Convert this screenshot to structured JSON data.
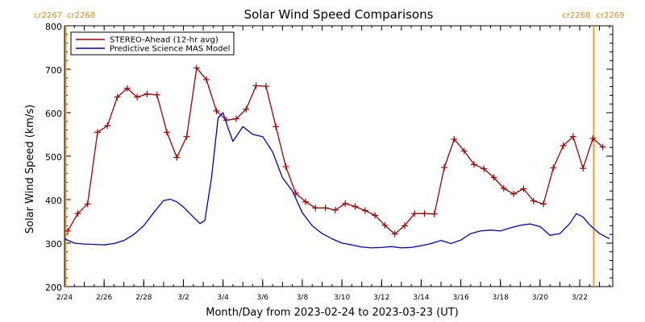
{
  "chart_data": {
    "type": "line",
    "title": "Solar Wind Speed Comparisons",
    "xlabel": "Month/Day from 2023-02-24 to 2023-03-23 (UT)",
    "ylabel": "Solar Wind Speed (km/s)",
    "xlim": [
      "2023-02-24",
      "2023-03-23"
    ],
    "ylim": [
      200,
      800
    ],
    "y_ticks": [
      200,
      300,
      400,
      500,
      600,
      700,
      800
    ],
    "x_ticks": [
      {
        "date": "2023-02-24",
        "label": "2/24"
      },
      {
        "date": "2023-02-26",
        "label": "2/26"
      },
      {
        "date": "2023-02-28",
        "label": "2/28"
      },
      {
        "date": "2023-03-02",
        "label": "3/2"
      },
      {
        "date": "2023-03-04",
        "label": "3/4"
      },
      {
        "date": "2023-03-06",
        "label": "3/6"
      },
      {
        "date": "2023-03-08",
        "label": "3/8"
      },
      {
        "date": "2023-03-10",
        "label": "3/10"
      },
      {
        "date": "2023-03-12",
        "label": "3/12"
      },
      {
        "date": "2023-03-14",
        "label": "3/14"
      },
      {
        "date": "2023-03-16",
        "label": "3/16"
      },
      {
        "date": "2023-03-18",
        "label": "3/18"
      },
      {
        "date": "2023-03-20",
        "label": "3/20"
      },
      {
        "date": "2023-03-22",
        "label": "3/22"
      }
    ],
    "legend_position": "top-left",
    "grid": false,
    "carrington_markers": [
      {
        "date": "2023-02-24",
        "left_label": "cr2267",
        "right_label": "cr2268"
      },
      {
        "date": "2023-03-22 17:00",
        "left_label": "cr2268",
        "right_label": "cr2269"
      }
    ],
    "marker_color": "#f0a030",
    "series": [
      {
        "name": "STEREO-Ahead (12-hr avg)",
        "color": "#a00000",
        "marker": "plus",
        "points": [
          [
            "2023-02-24 04:00",
            328
          ],
          [
            "2023-02-24 16:00",
            368
          ],
          [
            "2023-02-25 04:00",
            390
          ],
          [
            "2023-02-25 16:00",
            555
          ],
          [
            "2023-02-26 04:00",
            570
          ],
          [
            "2023-02-26 16:00",
            636
          ],
          [
            "2023-02-27 04:00",
            656
          ],
          [
            "2023-02-27 16:00",
            636
          ],
          [
            "2023-02-28 04:00",
            643
          ],
          [
            "2023-02-28 16:00",
            641
          ],
          [
            "2023-03-01 04:00",
            555
          ],
          [
            "2023-03-01 16:00",
            497
          ],
          [
            "2023-03-02 04:00",
            545
          ],
          [
            "2023-03-02 16:00",
            703
          ],
          [
            "2023-03-03 04:00",
            676
          ],
          [
            "2023-03-03 16:00",
            604
          ],
          [
            "2023-03-04 04:00",
            583
          ],
          [
            "2023-03-04 16:00",
            586
          ],
          [
            "2023-03-05 04:00",
            608
          ],
          [
            "2023-03-05 16:00",
            662
          ],
          [
            "2023-03-06 04:00",
            661
          ],
          [
            "2023-03-06 16:00",
            568
          ],
          [
            "2023-03-07 04:00",
            476
          ],
          [
            "2023-03-07 16:00",
            415
          ],
          [
            "2023-03-08 04:00",
            395
          ],
          [
            "2023-03-08 16:00",
            381
          ],
          [
            "2023-03-09 04:00",
            381
          ],
          [
            "2023-03-09 16:00",
            376
          ],
          [
            "2023-03-10 04:00",
            391
          ],
          [
            "2023-03-10 16:00",
            384
          ],
          [
            "2023-03-11 04:00",
            375
          ],
          [
            "2023-03-11 16:00",
            364
          ],
          [
            "2023-03-12 04:00",
            341
          ],
          [
            "2023-03-12 16:00",
            321
          ],
          [
            "2023-03-13 04:00",
            340
          ],
          [
            "2023-03-13 16:00",
            368
          ],
          [
            "2023-03-14 04:00",
            368
          ],
          [
            "2023-03-14 16:00",
            367
          ],
          [
            "2023-03-15 04:00",
            474
          ],
          [
            "2023-03-15 16:00",
            539
          ],
          [
            "2023-03-16 04:00",
            512
          ],
          [
            "2023-03-16 16:00",
            481
          ],
          [
            "2023-03-17 04:00",
            471
          ],
          [
            "2023-03-17 16:00",
            451
          ],
          [
            "2023-03-18 04:00",
            426
          ],
          [
            "2023-03-18 16:00",
            413
          ],
          [
            "2023-03-19 04:00",
            425
          ],
          [
            "2023-03-19 16:00",
            397
          ],
          [
            "2023-03-20 04:00",
            390
          ],
          [
            "2023-03-20 16:00",
            473
          ],
          [
            "2023-03-21 04:00",
            524
          ],
          [
            "2023-03-21 16:00",
            545
          ],
          [
            "2023-03-22 04:00",
            472
          ],
          [
            "2023-03-22 16:00",
            541
          ],
          [
            "2023-03-23 04:00",
            521
          ]
        ]
      },
      {
        "name": "Predictive Science MAS Model",
        "color": "#0000c8",
        "marker": "none",
        "points": [
          [
            "2023-02-24 00:00",
            310
          ],
          [
            "2023-02-24 12:00",
            300
          ],
          [
            "2023-02-25 00:00",
            298
          ],
          [
            "2023-02-25 12:00",
            297
          ],
          [
            "2023-02-26 00:00",
            296
          ],
          [
            "2023-02-26 12:00",
            299
          ],
          [
            "2023-02-27 00:00",
            306
          ],
          [
            "2023-02-27 12:00",
            320
          ],
          [
            "2023-02-28 00:00",
            340
          ],
          [
            "2023-02-28 12:00",
            370
          ],
          [
            "2023-03-01 00:00",
            398
          ],
          [
            "2023-03-01 08:00",
            401
          ],
          [
            "2023-03-01 16:00",
            395
          ],
          [
            "2023-03-02 00:00",
            383
          ],
          [
            "2023-03-02 12:00",
            360
          ],
          [
            "2023-03-02 20:00",
            345
          ],
          [
            "2023-03-03 02:00",
            352
          ],
          [
            "2023-03-03 10:00",
            450
          ],
          [
            "2023-03-03 18:00",
            588
          ],
          [
            "2023-03-04 00:00",
            600
          ],
          [
            "2023-03-04 06:00",
            565
          ],
          [
            "2023-03-04 12:00",
            534
          ],
          [
            "2023-03-05 00:00",
            568
          ],
          [
            "2023-03-05 12:00",
            550
          ],
          [
            "2023-03-06 00:00",
            545
          ],
          [
            "2023-03-06 12:00",
            510
          ],
          [
            "2023-03-07 00:00",
            450
          ],
          [
            "2023-03-07 12:00",
            420
          ],
          [
            "2023-03-08 00:00",
            370
          ],
          [
            "2023-03-08 12:00",
            340
          ],
          [
            "2023-03-09 00:00",
            322
          ],
          [
            "2023-03-09 12:00",
            310
          ],
          [
            "2023-03-10 00:00",
            300
          ],
          [
            "2023-03-10 12:00",
            296
          ],
          [
            "2023-03-11 00:00",
            291
          ],
          [
            "2023-03-11 12:00",
            289
          ],
          [
            "2023-03-12 00:00",
            290
          ],
          [
            "2023-03-12 12:00",
            292
          ],
          [
            "2023-03-13 00:00",
            289
          ],
          [
            "2023-03-13 12:00",
            290
          ],
          [
            "2023-03-14 00:00",
            294
          ],
          [
            "2023-03-14 12:00",
            299
          ],
          [
            "2023-03-15 00:00",
            306
          ],
          [
            "2023-03-15 12:00",
            299
          ],
          [
            "2023-03-16 00:00",
            307
          ],
          [
            "2023-03-16 12:00",
            322
          ],
          [
            "2023-03-17 00:00",
            328
          ],
          [
            "2023-03-17 12:00",
            330
          ],
          [
            "2023-03-18 00:00",
            328
          ],
          [
            "2023-03-18 12:00",
            335
          ],
          [
            "2023-03-19 00:00",
            341
          ],
          [
            "2023-03-19 12:00",
            344
          ],
          [
            "2023-03-20 00:00",
            338
          ],
          [
            "2023-03-20 12:00",
            318
          ],
          [
            "2023-03-21 00:00",
            322
          ],
          [
            "2023-03-21 12:00",
            345
          ],
          [
            "2023-03-21 20:00",
            368
          ],
          [
            "2023-03-22 04:00",
            360
          ],
          [
            "2023-03-22 12:00",
            342
          ],
          [
            "2023-03-23 00:00",
            322
          ],
          [
            "2023-03-23 12:00",
            310
          ]
        ]
      }
    ]
  }
}
